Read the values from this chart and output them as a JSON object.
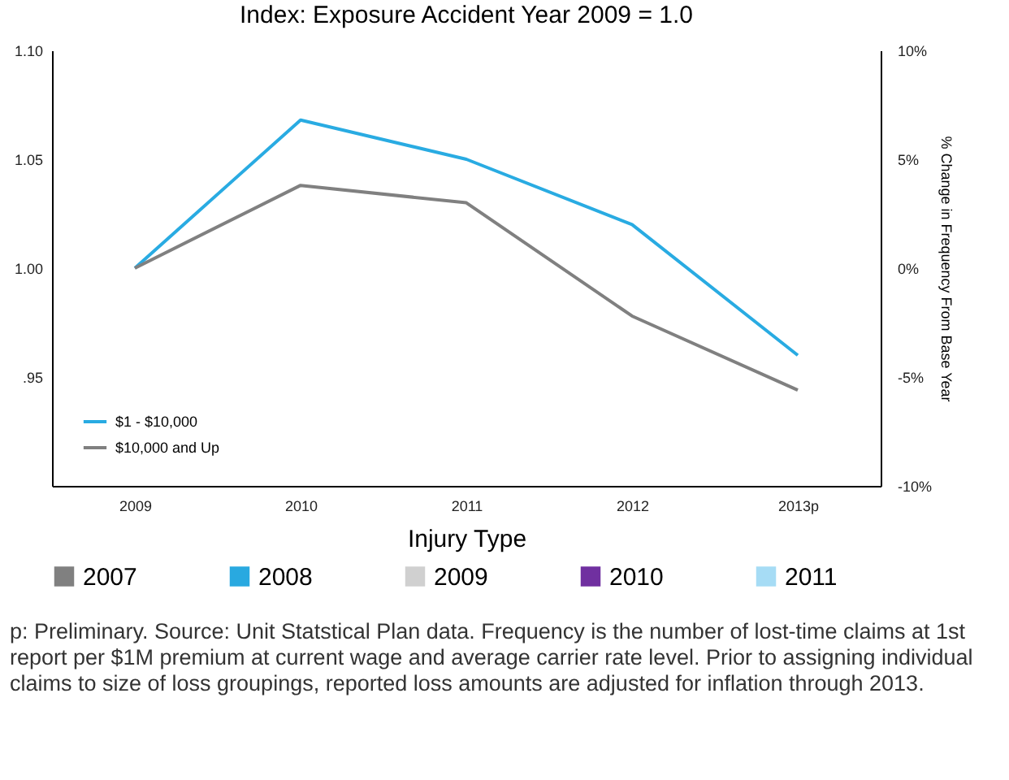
{
  "chart_data": {
    "type": "line",
    "title": "Index: Exposure Accident Year 2009 = 1.0",
    "xlabel": "Injury Type",
    "y2label": "% Change in Frequency From Base Year",
    "categories": [
      "2009",
      "2010",
      "2011",
      "2012",
      "2013p"
    ],
    "series": [
      {
        "name": "$1 - $10,000",
        "color": "#29abe2",
        "values": [
          1.0,
          1.068,
          1.05,
          1.02,
          0.96
        ]
      },
      {
        "name": "$10,000 and Up",
        "color": "#808080",
        "values": [
          1.0,
          1.038,
          1.03,
          0.978,
          0.944
        ]
      },
      {
        "name": "2007",
        "color": "#808080",
        "values": [
          null,
          null,
          null,
          null,
          null
        ]
      },
      {
        "name": "2008",
        "color": "#29a9e0",
        "values": [
          null,
          null,
          null,
          null,
          null
        ]
      },
      {
        "name": "2009",
        "color": "#d0d0d0",
        "values": [
          null,
          null,
          null,
          null,
          null
        ]
      },
      {
        "name": "2010",
        "color": "#7030a0",
        "values": [
          null,
          null,
          null,
          null,
          null
        ]
      },
      {
        "name": "2011",
        "color": "#a6dcf5",
        "values": [
          null,
          null,
          null,
          null,
          null
        ]
      }
    ],
    "ylim": [
      0.9,
      1.1
    ],
    "yticks": [
      {
        "value": 0.9,
        "label": null
      },
      {
        "value": 0.95,
        "label": ".95"
      },
      {
        "value": 1.0,
        "label": "1.00"
      },
      1.05,
      {
        "value": 1.1,
        "label": "1.10"
      }
    ],
    "y2lim": [
      -10,
      10
    ],
    "y2ticks": [
      {
        "value": -10,
        "label": "-10%"
      },
      {
        "value": -5,
        "label": "-5%"
      },
      {
        "value": 0,
        "label": "0%"
      },
      {
        "value": 5,
        "label": "5%"
      },
      {
        "value": 10,
        "label": "10%"
      }
    ],
    "legend": "bottom left",
    "annotations": [
      "p: Preliminary. Source: Unit Statstical Plan data. Frequency is the number of lost-time claims at 1st report per $1M premium at current wage and average carrier rate level. Prior to assigning individual claims to size of loss groupings, reported loss amounts are adjusted for inflation through 2013."
    ]
  }
}
